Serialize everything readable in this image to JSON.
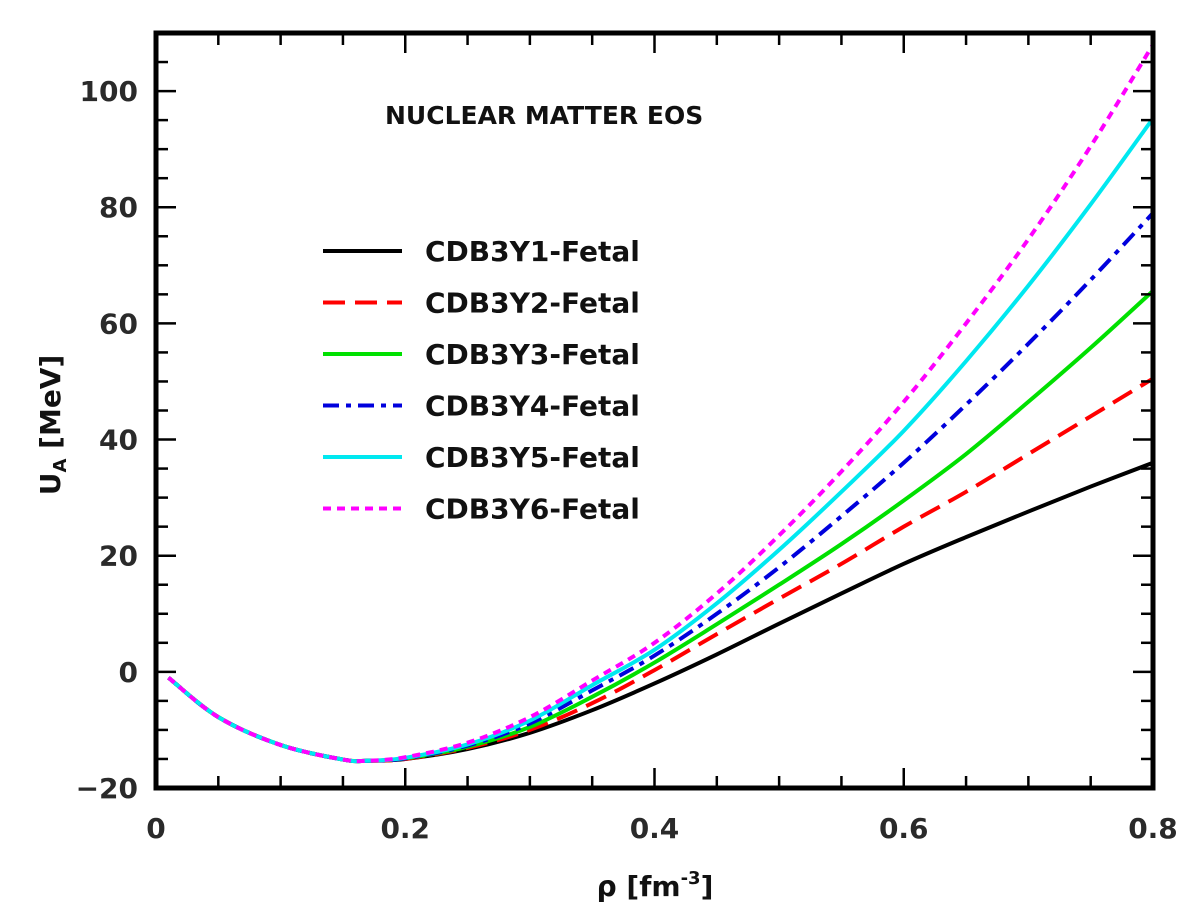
{
  "chart_data": {
    "type": "line",
    "title": "NUCLEAR MATTER EOS",
    "xlabel": "ρ [fm",
    "xlabel_sup": "-3",
    "xlabel_end": "]",
    "ylabel": "U",
    "ylabel_sub": "A",
    "ylabel_end": " [MeV]",
    "xlim": [
      0,
      0.8
    ],
    "ylim": [
      -20,
      110
    ],
    "xticks": [
      0,
      0.2,
      0.4,
      0.6,
      0.8
    ],
    "xtick_labels": [
      "0",
      "0.2",
      "0.4",
      "0.6",
      "0.8"
    ],
    "yticks": [
      -20,
      0,
      20,
      40,
      60,
      80,
      100
    ],
    "ytick_labels": [
      "−20",
      "0",
      "20",
      "40",
      "60",
      "80",
      "100"
    ],
    "grid": false,
    "legend_position": "upper-left",
    "x": [
      0.01,
      0.05,
      0.1,
      0.15,
      0.17,
      0.2,
      0.25,
      0.3,
      0.35,
      0.4,
      0.45,
      0.5,
      0.55,
      0.6,
      0.65,
      0.7,
      0.75,
      0.8
    ],
    "series": [
      {
        "name": "CDB3Y1-Fetal",
        "color": "#000000",
        "dash": "solid",
        "values": [
          -1.0,
          -7.8,
          -12.6,
          -15.1,
          -15.3,
          -15.0,
          -13.3,
          -10.5,
          -6.6,
          -2.0,
          3.0,
          8.3,
          13.5,
          18.6,
          23.2,
          27.6,
          31.9,
          36.0
        ]
      },
      {
        "name": "CDB3Y2-Fetal",
        "color": "#ff0000",
        "dash": "dashed",
        "values": [
          -1.0,
          -7.8,
          -12.6,
          -15.1,
          -15.3,
          -15.0,
          -13.1,
          -10.0,
          -5.4,
          0.3,
          6.5,
          12.6,
          18.6,
          25.0,
          31.0,
          37.5,
          44.0,
          50.5
        ]
      },
      {
        "name": "CDB3Y3-Fetal",
        "color": "#00e000",
        "dash": "solid",
        "values": [
          -1.0,
          -7.8,
          -12.6,
          -15.1,
          -15.3,
          -14.9,
          -12.9,
          -9.5,
          -4.3,
          1.6,
          8.2,
          15.0,
          22.0,
          29.5,
          37.5,
          46.5,
          55.8,
          65.6
        ]
      },
      {
        "name": "CDB3Y4-Fetal",
        "color": "#0000dd",
        "dash": "dashdot",
        "values": [
          -1.0,
          -7.8,
          -12.6,
          -15.1,
          -15.3,
          -14.9,
          -12.7,
          -8.9,
          -3.2,
          2.8,
          10.0,
          18.0,
          26.8,
          36.0,
          46.0,
          56.5,
          67.5,
          79.0
        ]
      },
      {
        "name": "CDB3Y5-Fetal",
        "color": "#00e8f0",
        "dash": "solid",
        "values": [
          -1.0,
          -7.8,
          -12.6,
          -15.1,
          -15.3,
          -14.8,
          -12.5,
          -8.4,
          -2.3,
          3.8,
          11.8,
          21.0,
          31.0,
          41.5,
          53.5,
          66.5,
          80.5,
          95.3
        ]
      },
      {
        "name": "CDB3Y6-Fetal",
        "color": "#ff00ff",
        "dash": "dotted",
        "values": [
          -1.0,
          -7.8,
          -12.6,
          -15.1,
          -15.3,
          -14.7,
          -12.2,
          -7.8,
          -1.5,
          5.0,
          13.5,
          23.5,
          34.5,
          46.5,
          60.0,
          74.5,
          90.5,
          108.0
        ]
      }
    ]
  }
}
